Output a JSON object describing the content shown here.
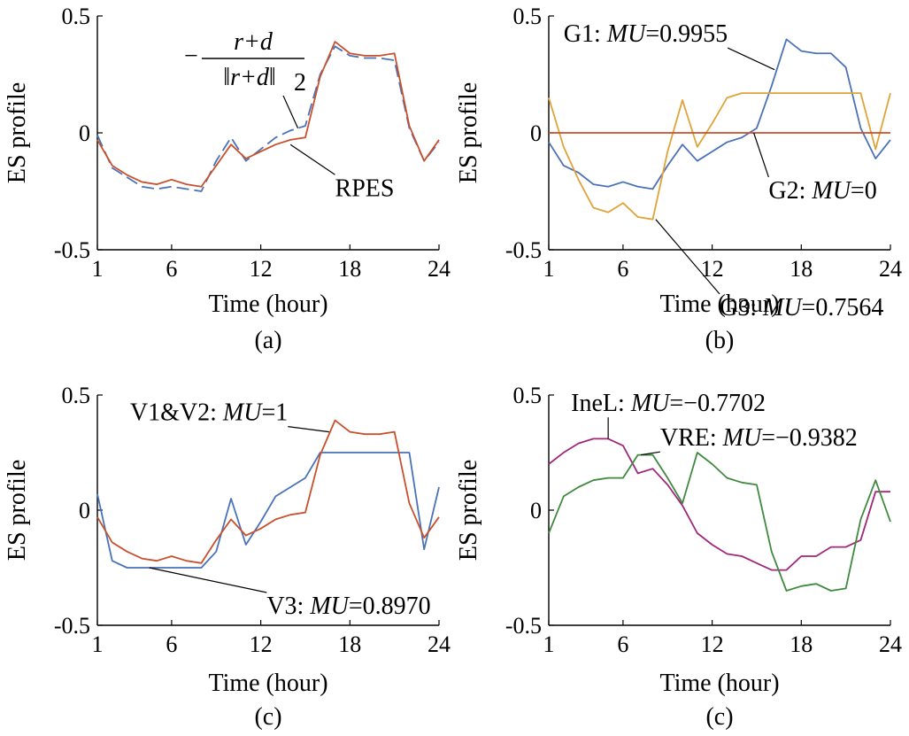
{
  "chart_data": [
    {
      "type": "line",
      "caption": "(a)",
      "xlabel": "Time (hour)",
      "ylabel": "ES profile",
      "xlim": [
        1,
        24
      ],
      "ylim": [
        -0.5,
        0.5
      ],
      "xticks": [
        "1",
        "6",
        "12",
        "18",
        "24"
      ],
      "yticks": [
        "-0.5",
        "0",
        "0.5"
      ],
      "x": [
        1,
        2,
        3,
        4,
        5,
        6,
        7,
        8,
        9,
        10,
        11,
        12,
        13,
        14,
        15,
        16,
        17,
        18,
        19,
        20,
        21,
        22,
        23,
        24
      ],
      "series": [
        {
          "name": "−(r+d)/‖r+d‖₂",
          "color": "#4a72b8",
          "dashed": true,
          "values": [
            -0.01,
            -0.15,
            -0.19,
            -0.23,
            -0.24,
            -0.23,
            -0.24,
            -0.25,
            -0.12,
            -0.02,
            -0.12,
            -0.07,
            -0.02,
            0.01,
            0.03,
            0.25,
            0.37,
            0.33,
            0.32,
            0.32,
            0.31,
            0.02,
            -0.12,
            -0.04
          ]
        },
        {
          "name": "RPES",
          "color": "#c8502c",
          "dashed": false,
          "values": [
            -0.03,
            -0.14,
            -0.18,
            -0.21,
            -0.22,
            -0.2,
            -0.22,
            -0.23,
            -0.14,
            -0.05,
            -0.11,
            -0.08,
            -0.05,
            -0.03,
            -0.02,
            0.24,
            0.39,
            0.34,
            0.33,
            0.33,
            0.34,
            0.03,
            -0.12,
            -0.03
          ]
        }
      ],
      "annotations": [
        {
          "text": "RPES",
          "x": 17,
          "y": -0.27,
          "target_x": 14,
          "target_y": -0.05
        }
      ],
      "formula": {
        "prefix": "−",
        "numerator": "r+d",
        "denominator": "‖r+d‖",
        "subscript": "2",
        "target_x": 14.5,
        "target_y": 0.02
      }
    },
    {
      "type": "line",
      "caption": "(b)",
      "xlabel": "Time (hour)",
      "ylabel": "ES profile",
      "xlim": [
        1,
        24
      ],
      "ylim": [
        -0.5,
        0.5
      ],
      "xticks": [
        "1",
        "6",
        "12",
        "18",
        "24"
      ],
      "yticks": [
        "-0.5",
        "0",
        "0.5"
      ],
      "x": [
        1,
        2,
        3,
        4,
        5,
        6,
        7,
        8,
        9,
        10,
        11,
        12,
        13,
        14,
        15,
        16,
        17,
        18,
        19,
        20,
        21,
        22,
        23,
        24
      ],
      "series": [
        {
          "color": "#4a72b8",
          "dashed": false,
          "values": [
            -0.04,
            -0.14,
            -0.17,
            -0.22,
            -0.23,
            -0.21,
            -0.23,
            -0.24,
            -0.14,
            -0.05,
            -0.12,
            -0.08,
            -0.04,
            -0.02,
            0.02,
            0.2,
            0.4,
            0.35,
            0.34,
            0.34,
            0.28,
            0.02,
            -0.11,
            -0.03
          ]
        },
        {
          "color": "#e0a33a",
          "dashed": false,
          "values": [
            0.15,
            -0.06,
            -0.2,
            -0.32,
            -0.34,
            -0.3,
            -0.36,
            -0.37,
            -0.08,
            0.14,
            -0.06,
            0.04,
            0.15,
            0.17,
            0.17,
            0.17,
            0.17,
            0.17,
            0.17,
            0.17,
            0.17,
            0.17,
            -0.07,
            0.17
          ]
        },
        {
          "color": "#c8502c",
          "dashed": false,
          "values": [
            0,
            0,
            0,
            0,
            0,
            0,
            0,
            0,
            0,
            0,
            0,
            0,
            0,
            0,
            0,
            0,
            0,
            0,
            0,
            0,
            0,
            0,
            0,
            0
          ]
        }
      ],
      "annotations": [
        {
          "text": "G1: ",
          "italic": "MU",
          "rest": "=0.9955",
          "x": 2,
          "y": 0.39,
          "target_x": 16.2,
          "target_y": 0.27
        },
        {
          "text": "G2: ",
          "italic": "MU",
          "rest": "=0",
          "x": 15.8,
          "y": -0.28,
          "target_x": 14.8,
          "target_y": 0
        },
        {
          "text": "G3: ",
          "italic": "MU",
          "rest": "=0.7564",
          "x": 12.5,
          "y": -0.78,
          "target_x": 8.2,
          "target_y": -0.37
        }
      ]
    },
    {
      "type": "line",
      "caption": "(c)",
      "xlabel": "Time (hour)",
      "ylabel": "ES profile",
      "xlim": [
        1,
        24
      ],
      "ylim": [
        -0.5,
        0.5
      ],
      "xticks": [
        "1",
        "6",
        "12",
        "18",
        "24"
      ],
      "yticks": [
        "-0.5",
        "0",
        "0.5"
      ],
      "x": [
        1,
        2,
        3,
        4,
        5,
        6,
        7,
        8,
        9,
        10,
        11,
        12,
        13,
        14,
        15,
        16,
        17,
        18,
        19,
        20,
        21,
        22,
        23,
        24
      ],
      "series": [
        {
          "color": "#4a72b8",
          "dashed": false,
          "values": [
            0.07,
            -0.22,
            -0.25,
            -0.25,
            -0.25,
            -0.25,
            -0.25,
            -0.25,
            -0.18,
            0.05,
            -0.15,
            -0.05,
            0.06,
            0.1,
            0.14,
            0.25,
            0.25,
            0.25,
            0.25,
            0.25,
            0.25,
            0.25,
            -0.17,
            0.1
          ]
        },
        {
          "color": "#c8502c",
          "dashed": false,
          "values": [
            -0.03,
            -0.14,
            -0.18,
            -0.21,
            -0.22,
            -0.2,
            -0.22,
            -0.23,
            -0.13,
            -0.04,
            -0.11,
            -0.08,
            -0.04,
            -0.02,
            -0.01,
            0.24,
            0.39,
            0.34,
            0.33,
            0.33,
            0.34,
            0.03,
            -0.12,
            -0.03
          ]
        }
      ],
      "annotations": [
        {
          "text": "V1&V2: ",
          "italic": "MU",
          "rest": "=1",
          "x": 3.2,
          "y": 0.39,
          "target_x": 16.6,
          "target_y": 0.34
        },
        {
          "text": "V3: ",
          "italic": "MU",
          "rest": "=0.8970",
          "x": 12.4,
          "y": -0.45,
          "target_x": 4.5,
          "target_y": -0.25
        }
      ]
    },
    {
      "type": "line",
      "caption": "(c)",
      "xlabel": "Time (hour)",
      "ylabel": "ES profile",
      "xlim": [
        1,
        24
      ],
      "ylim": [
        -0.5,
        0.5
      ],
      "xticks": [
        "1",
        "6",
        "12",
        "18",
        "24"
      ],
      "yticks": [
        "-0.5",
        "0",
        "0.5"
      ],
      "x": [
        1,
        2,
        3,
        4,
        5,
        6,
        7,
        8,
        9,
        10,
        11,
        12,
        13,
        14,
        15,
        16,
        17,
        18,
        19,
        20,
        21,
        22,
        23,
        24
      ],
      "series": [
        {
          "color": "#a0287a",
          "dashed": false,
          "values": [
            0.2,
            0.25,
            0.29,
            0.31,
            0.31,
            0.28,
            0.16,
            0.18,
            0.11,
            0.02,
            -0.1,
            -0.15,
            -0.19,
            -0.2,
            -0.23,
            -0.26,
            -0.26,
            -0.2,
            -0.2,
            -0.16,
            -0.16,
            -0.13,
            0.08,
            0.08
          ]
        },
        {
          "color": "#3f8a3f",
          "dashed": false,
          "values": [
            -0.1,
            0.06,
            0.1,
            0.13,
            0.14,
            0.14,
            0.24,
            0.24,
            0.14,
            0.03,
            0.25,
            0.2,
            0.14,
            0.12,
            0.11,
            -0.18,
            -0.35,
            -0.33,
            -0.32,
            -0.35,
            -0.34,
            -0.04,
            0.13,
            -0.05
          ]
        }
      ],
      "annotations": [
        {
          "text": "IneL: ",
          "italic": "MU",
          "rest": "=−0.7702",
          "x": 2.5,
          "y": 0.43,
          "target_x": 5,
          "target_y": 0.31
        },
        {
          "text": "VRE: ",
          "italic": "MU",
          "rest": "=−0.9382",
          "x": 8.5,
          "y": 0.28,
          "target_x": 7.2,
          "target_y": 0.24
        }
      ]
    }
  ]
}
